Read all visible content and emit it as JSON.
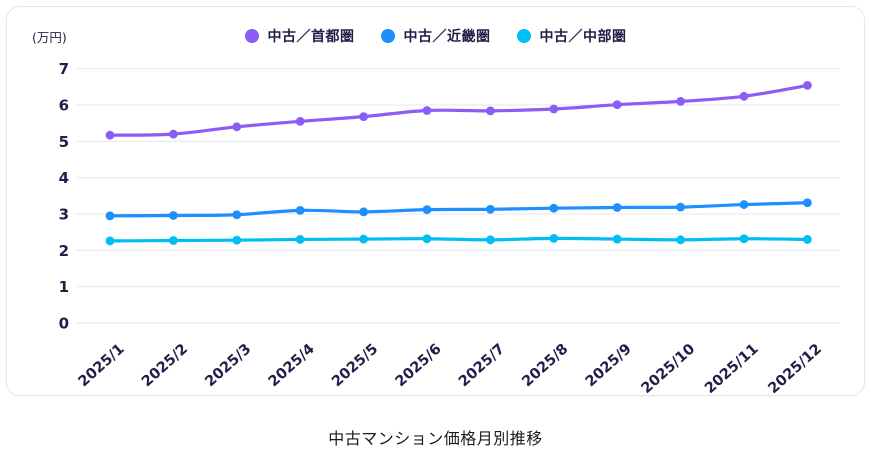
{
  "card": {
    "unit_label": "(万円)"
  },
  "legend": [
    {
      "label": "中古／首都圏",
      "color": "#8b5cf6"
    },
    {
      "label": "中古／近畿圏",
      "color": "#1e8fff"
    },
    {
      "label": "中古／中部圏",
      "color": "#00bdf2"
    }
  ],
  "title": "中古マンション価格月別推移",
  "chart_data": {
    "type": "line",
    "title": "中古マンション価格月別推移",
    "ylabel": "(万円)",
    "xlabel": "",
    "ylim": [
      0,
      7
    ],
    "ytick_step": 1,
    "grid": true,
    "legend_position": "top",
    "x": [
      "2025/1",
      "2025/2",
      "2025/3",
      "2025/4",
      "2025/5",
      "2025/6",
      "2025/7",
      "2025/8",
      "2025/9",
      "2025/10",
      "2025/11",
      "2025/12"
    ],
    "series": [
      {
        "name": "中古／首都圏",
        "color": "#8b5cf6",
        "values": [
          5.17,
          5.2,
          5.4,
          5.55,
          5.68,
          5.85,
          5.84,
          5.89,
          6.01,
          6.1,
          6.24,
          6.54
        ]
      },
      {
        "name": "中古／近畿圏",
        "color": "#1e8fff",
        "values": [
          2.95,
          2.96,
          2.98,
          3.1,
          3.06,
          3.12,
          3.13,
          3.16,
          3.18,
          3.19,
          3.26,
          3.31
        ]
      },
      {
        "name": "中古／中部圏",
        "color": "#00bdf2",
        "values": [
          2.26,
          2.27,
          2.28,
          2.3,
          2.31,
          2.32,
          2.29,
          2.33,
          2.31,
          2.29,
          2.32,
          2.3
        ]
      }
    ]
  }
}
